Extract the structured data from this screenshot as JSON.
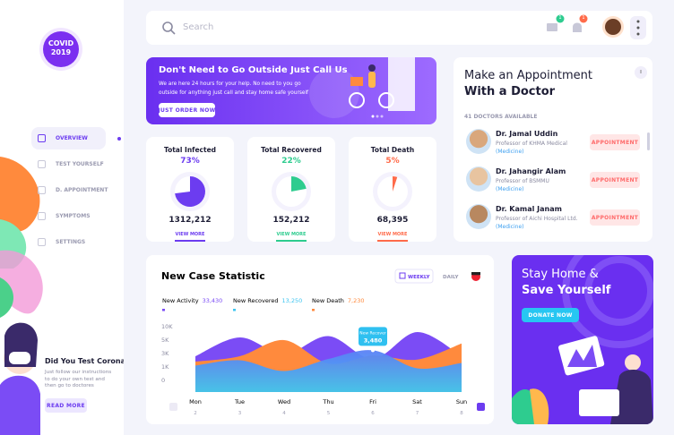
{
  "sidebar": {
    "logo": [
      "COVID",
      "2019"
    ],
    "nav": [
      "OVERVIEW",
      "TEST YOURSELF",
      "D. APPOINTMENT",
      "SYMPTOMS",
      "SETTINGS"
    ],
    "promo": {
      "title": "Did You Test Corona!",
      "text": "Just follow our instructions to do your own test and then go to doctores",
      "button": "READ MORE"
    }
  },
  "header": {
    "search": "Search",
    "mail_badge": "1",
    "bell_badge": "1"
  },
  "banner": {
    "title": "Don't Need to Go Outside Just Call Us",
    "text": "We are here 24 hours for your help. No need to you go outside for anything just call and stay home safe yourself",
    "button": "JUST ORDER NOW"
  },
  "stats": [
    {
      "title": "Total Infected",
      "percent": 73,
      "percent_label": "73%",
      "count": "1312,212",
      "link": "VIEW MORE",
      "color": "#6c3cf0"
    },
    {
      "title": "Total Recovered",
      "percent": 22,
      "percent_label": "22%",
      "count": "152,212",
      "link": "VIEW MORE",
      "color": "#2ecc8f"
    },
    {
      "title": "Total Death",
      "percent": 5,
      "percent_label": "5%",
      "count": "68,395",
      "link": "VIEW MORE",
      "color": "#ff6b4a"
    }
  ],
  "appointment": {
    "title": [
      "Make an Appointment",
      "With a Doctor"
    ],
    "available": "41 DOCTORS AVAILABLE",
    "doctors": [
      {
        "name": "Dr. Jamal Uddin",
        "role": "Professor of KHMA Medical",
        "specialty": "(Medicine)",
        "button": "APPOINTMENT"
      },
      {
        "name": "Dr. Jahangir Alam",
        "role": "Professor of BSMMU",
        "specialty": "(Medicine)",
        "button": "APPOINTMENT"
      },
      {
        "name": "Dr. Kamal Janam",
        "role": "Professor of Aichi Hospital Ltd.",
        "specialty": "(Medicine)",
        "button": "APPOINTMENT"
      }
    ]
  },
  "chart": {
    "type": "area",
    "title": "New Case Statistic",
    "tabs": [
      "WEEKLY",
      "DAILY"
    ],
    "legend_values": [
      "33,430",
      "13,250",
      "7,230"
    ],
    "categories": [
      "Mon",
      "Tue",
      "Wed",
      "Thu",
      "Fri",
      "Sat",
      "Sun"
    ],
    "dates": [
      "2",
      "3",
      "4",
      "5",
      "6",
      "7",
      "8"
    ],
    "yticks": [
      {
        "value": 10000,
        "label": "10K"
      },
      {
        "value": 5000,
        "label": "5K"
      },
      {
        "value": 3000,
        "label": "3K"
      },
      {
        "value": 1000,
        "label": "1K"
      },
      0
    ],
    "series": [
      {
        "name": "New Activity",
        "color": "#7b4cf5",
        "values": [
          2600,
          6000,
          2900,
          6500,
          2200,
          8000,
          2600
        ]
      },
      {
        "name": "New Death",
        "color": "#ff8a3d",
        "values": [
          1800,
          2600,
          5000,
          1500,
          2700,
          2100,
          4500
        ]
      },
      {
        "name": "New Recovered",
        "color": "#3ec5f0",
        "values": [
          1200,
          2000,
          700,
          2200,
          3480,
          900,
          1600
        ]
      }
    ],
    "tooltip": {
      "label": "New Recover",
      "value_label": "3,480"
    }
  },
  "stay_home": {
    "title": [
      "Stay Home &",
      "Save Yourself"
    ],
    "button": "DONATE NOW"
  }
}
